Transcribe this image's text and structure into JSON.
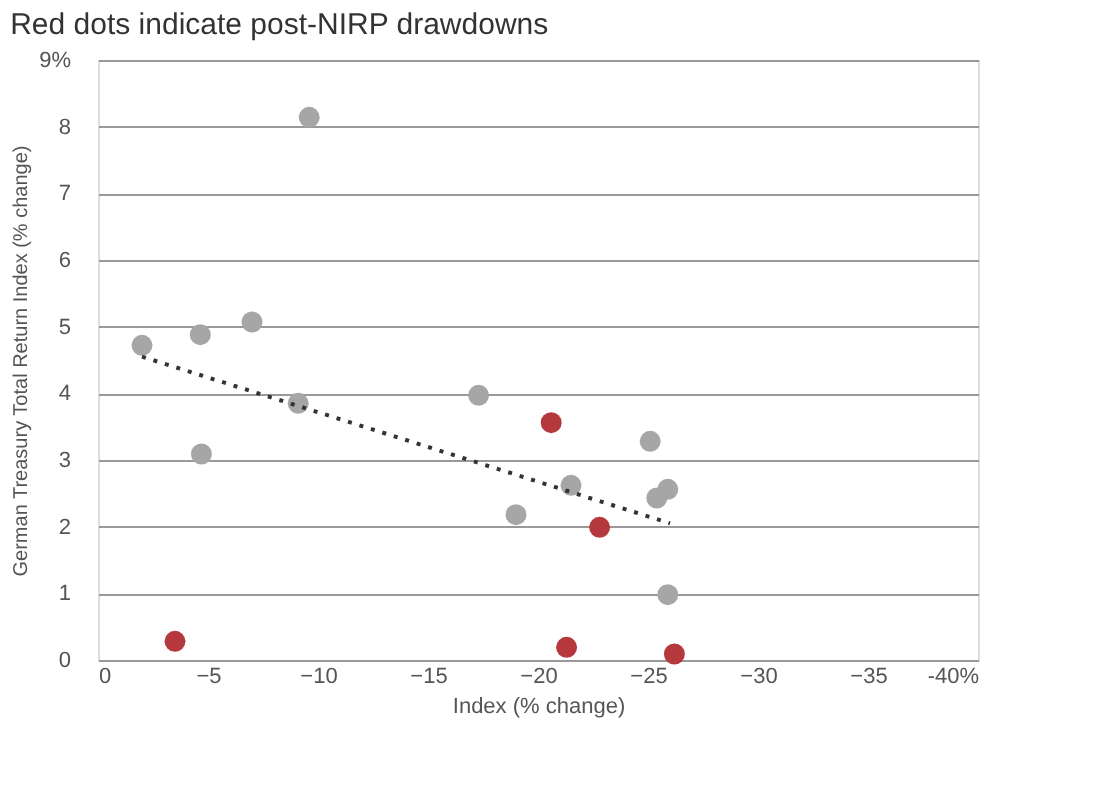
{
  "chart_data": {
    "type": "scatter",
    "title": "Red dots indicate post-NIRP drawdowns",
    "xlabel": "Index (% change)",
    "ylabel": "German Treasury Total Return Index (% change)",
    "xlim": [
      0,
      -40
    ],
    "xticks": [
      0,
      -5,
      -10,
      -15,
      -20,
      -25,
      -30,
      -35,
      {
        "value": -40,
        "label": "-40%"
      }
    ],
    "ylim": [
      0,
      9
    ],
    "yticks": [
      0,
      1,
      2,
      3,
      4,
      5,
      6,
      7,
      8,
      {
        "value": 9,
        "label": "9%"
      }
    ],
    "grid": "y",
    "marker": "circle",
    "legend": false,
    "series": [
      {
        "color": "#a6a6a6",
        "x": [
          -2.0,
          -4.65,
          -7.0,
          -9.6,
          -9.1,
          -4.7,
          -17.3,
          -19.0,
          -21.5,
          -25.1,
          -25.4,
          -25.9,
          -25.9
        ],
        "values": [
          4.72,
          4.88,
          5.07,
          8.14,
          3.85,
          3.09,
          3.97,
          2.18,
          2.62,
          3.28,
          2.43,
          2.56,
          0.98
        ]
      },
      {
        "color": "#b5383c",
        "x": [
          -3.5,
          -20.6,
          -22.8,
          -21.3,
          -26.2
        ],
        "values": [
          0.28,
          3.56,
          1.99,
          0.19,
          0.09
        ]
      },
      {
        "type": "line",
        "color": "#333333",
        "line_style": "dotted",
        "marker": "none",
        "x": [
          -2.0,
          -26.0
        ],
        "values": [
          4.55,
          2.05
        ]
      }
    ]
  }
}
